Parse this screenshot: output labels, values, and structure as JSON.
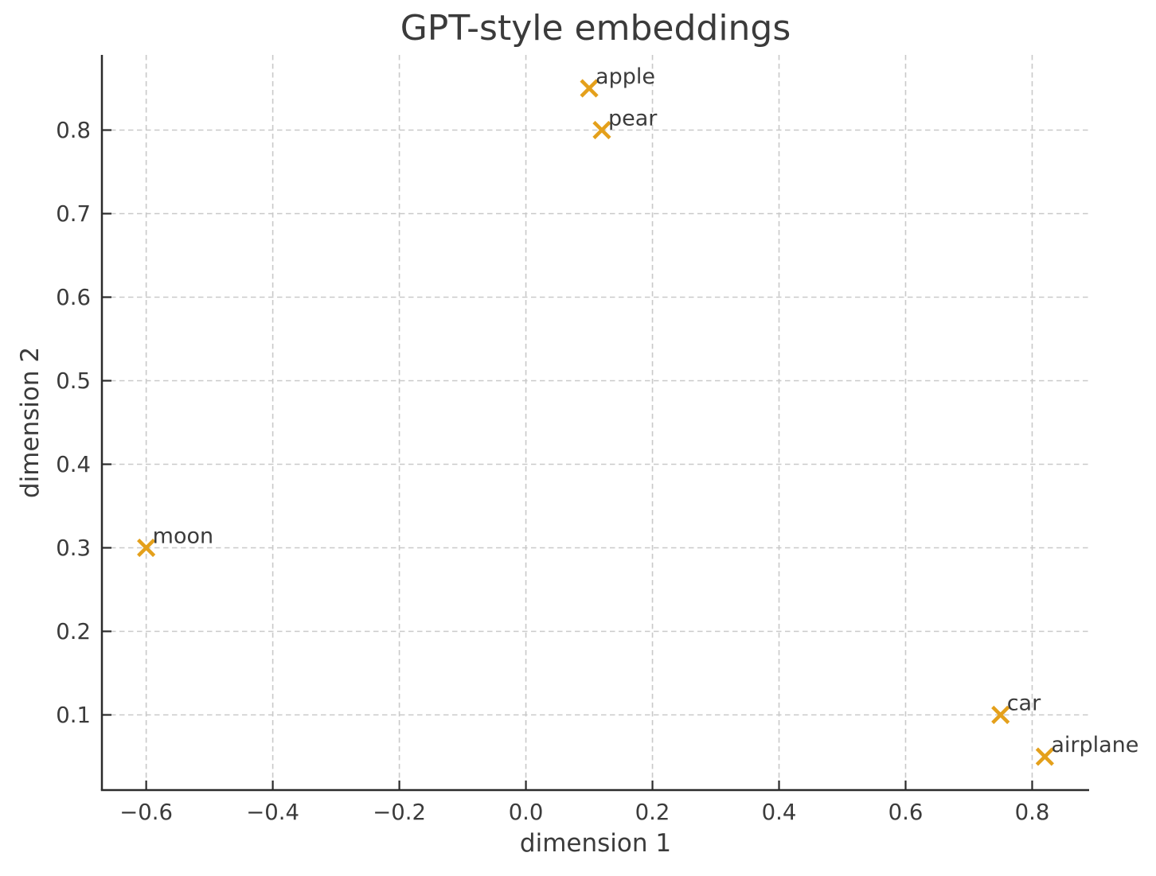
{
  "chart_data": {
    "type": "scatter",
    "title": "GPT-style embeddings",
    "xlabel": "dimension 1",
    "ylabel": "dimension 2",
    "xlim": [
      -0.67,
      0.89
    ],
    "ylim": [
      0.01,
      0.89
    ],
    "grid": true,
    "grid_style": "dashed",
    "legend": "none",
    "marker_shape": "x",
    "x_ticks": [
      {
        "value": -0.6,
        "label": "−0.6"
      },
      {
        "value": -0.4,
        "label": "−0.4"
      },
      {
        "value": -0.2,
        "label": "−0.2"
      },
      {
        "value": 0.0,
        "label": "0.0"
      },
      {
        "value": 0.2,
        "label": "0.2"
      },
      {
        "value": 0.4,
        "label": "0.4"
      },
      {
        "value": 0.6,
        "label": "0.6"
      },
      {
        "value": 0.8,
        "label": "0.8"
      }
    ],
    "y_ticks": [
      {
        "value": 0.1,
        "label": "0.1"
      },
      {
        "value": 0.2,
        "label": "0.2"
      },
      {
        "value": 0.3,
        "label": "0.3"
      },
      {
        "value": 0.4,
        "label": "0.4"
      },
      {
        "value": 0.5,
        "label": "0.5"
      },
      {
        "value": 0.6,
        "label": "0.6"
      },
      {
        "value": 0.7,
        "label": "0.7"
      },
      {
        "value": 0.8,
        "label": "0.8"
      }
    ],
    "points": [
      {
        "label": "apple",
        "x": 0.1,
        "y": 0.85
      },
      {
        "label": "pear",
        "x": 0.12,
        "y": 0.8
      },
      {
        "label": "moon",
        "x": -0.6,
        "y": 0.3
      },
      {
        "label": "car",
        "x": 0.75,
        "y": 0.1
      },
      {
        "label": "airplane",
        "x": 0.82,
        "y": 0.05
      }
    ],
    "colors": {
      "marker": "#E4A01B",
      "grid": "#c9c9c9",
      "spine": "#2b2b2b",
      "text": "#3b3b3b"
    }
  }
}
